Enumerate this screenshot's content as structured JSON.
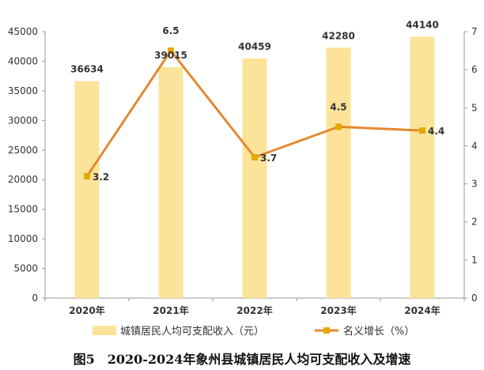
{
  "chart_data": {
    "type": "bar+line",
    "title": "图5　2020-2024年象州县城镇居民人均可支配收入及增速",
    "categories": [
      "2020年",
      "2021年",
      "2022年",
      "2023年",
      "2024年"
    ],
    "series": [
      {
        "name": "城镇居民人均可支配收入（元）",
        "type": "bar",
        "axis": "left",
        "color": "#FBE49A",
        "values": [
          36634,
          39015,
          40459,
          42280,
          44140
        ],
        "labels": [
          "36634",
          "39015",
          "40459",
          "42280",
          "44140"
        ]
      },
      {
        "name": "名义增长（%）",
        "type": "line",
        "axis": "right",
        "color": "#E3892F",
        "marker_color": "#E5A800",
        "values": [
          3.2,
          6.5,
          3.7,
          4.5,
          4.4
        ],
        "labels": [
          "3.2",
          "6.5",
          "3.7",
          "4.5",
          "4.4"
        ]
      }
    ],
    "y_left": {
      "min": 0,
      "max": 45000,
      "ticks": [
        "0",
        "5000",
        "10000",
        "15000",
        "20000",
        "25000",
        "30000",
        "35000",
        "40000",
        "45000"
      ]
    },
    "y_right": {
      "min": 0,
      "max": 7,
      "ticks": [
        "0",
        "1",
        "2",
        "3",
        "4",
        "5",
        "6",
        "7"
      ]
    },
    "grid": false,
    "legend_position": "bottom"
  }
}
